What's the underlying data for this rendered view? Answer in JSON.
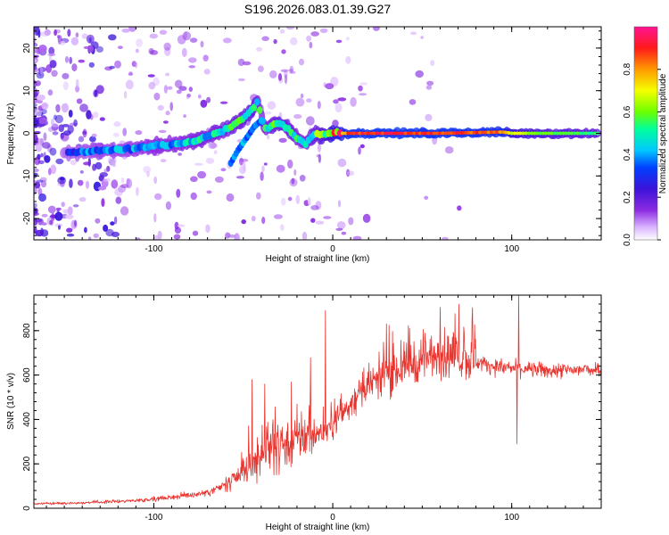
{
  "title": "S196.2026.083.01.39.G27",
  "colors": {
    "snr_line": "#e8342e",
    "colormap": [
      "#ffffff",
      "#d9b3ff",
      "#8c2be2",
      "#3b13d9",
      "#0041ff",
      "#00c8ff",
      "#00ff9c",
      "#6cff00",
      "#f5ff00",
      "#ff9a00",
      "#ff1a1a",
      "#ff1493"
    ]
  },
  "chart_data": [
    {
      "type": "heatmap",
      "name": "spectrogram",
      "title": "S196.2026.083.01.39.G27",
      "xlabel": "Height of straight line (km)",
      "ylabel": "Frequency (Hz)",
      "xlim": [
        -167,
        150
      ],
      "ylim": [
        -25,
        25
      ],
      "xticks": [
        -100,
        0,
        100
      ],
      "yticks": [
        -20,
        -10,
        0,
        10,
        20
      ],
      "colorbar": {
        "label": "Normalized spectral amplitude",
        "range": [
          0,
          1
        ],
        "ticks": [
          "0.0",
          "0.2",
          "0.4",
          "0.6",
          "0.8"
        ]
      },
      "ridge": {
        "description": "dominant frequency track vs height",
        "x": [
          -145,
          -130,
          -115,
          -100,
          -85,
          -75,
          -65,
          -57,
          -50,
          -45,
          -42,
          -38,
          -35,
          -30,
          -25,
          -20,
          -15,
          -10,
          -5,
          0,
          10,
          30,
          60,
          95,
          100,
          120,
          148
        ],
        "y": [
          -4.5,
          -4,
          -3.8,
          -3,
          -2.5,
          -1.5,
          0,
          1.5,
          3.5,
          5.5,
          7.5,
          1,
          1.5,
          2.5,
          1,
          -1,
          -2.5,
          0,
          -0.5,
          0,
          0,
          0,
          0,
          0.3,
          0,
          0,
          0
        ],
        "amplitude": [
          0.3,
          0.35,
          0.35,
          0.4,
          0.4,
          0.45,
          0.45,
          0.5,
          0.5,
          0.55,
          0.5,
          0.45,
          0.45,
          0.55,
          0.5,
          0.45,
          0.45,
          0.5,
          0.6,
          0.7,
          0.9,
          0.92,
          0.9,
          0.85,
          0.7,
          0.6,
          0.55
        ]
      },
      "secondary_branch": {
        "x": [
          -57,
          -53,
          -48,
          -44,
          -40
        ],
        "y": [
          -7,
          -4,
          -1,
          1.5,
          3
        ]
      }
    },
    {
      "type": "line",
      "name": "snr",
      "xlabel": "Height of straight line (km)",
      "ylabel": "SNR (10 * v/v)",
      "xlim": [
        -167,
        150
      ],
      "ylim": [
        0,
        960
      ],
      "xticks": [
        -100,
        0,
        100
      ],
      "yticks": [
        0,
        200,
        400,
        600,
        800
      ],
      "envelope": {
        "x": [
          -167,
          -140,
          -110,
          -90,
          -70,
          -55,
          -45,
          -35,
          -25,
          -15,
          -5,
          0,
          10,
          20,
          30,
          40,
          50,
          60,
          70,
          80,
          90,
          100,
          110,
          120,
          130,
          140,
          150
        ],
        "y": [
          20,
          25,
          35,
          50,
          70,
          120,
          200,
          260,
          300,
          330,
          340,
          380,
          470,
          540,
          600,
          640,
          670,
          690,
          680,
          660,
          640,
          630,
          625,
          620,
          620,
          625,
          630
        ]
      },
      "spikes": [
        {
          "x": -4,
          "y": 890
        },
        {
          "x": 60,
          "y": 905
        },
        {
          "x": 104,
          "y": 960
        },
        {
          "x": 103,
          "y": 290
        },
        {
          "x": -45,
          "y": 580
        },
        {
          "x": -38,
          "y": 560
        }
      ]
    }
  ]
}
